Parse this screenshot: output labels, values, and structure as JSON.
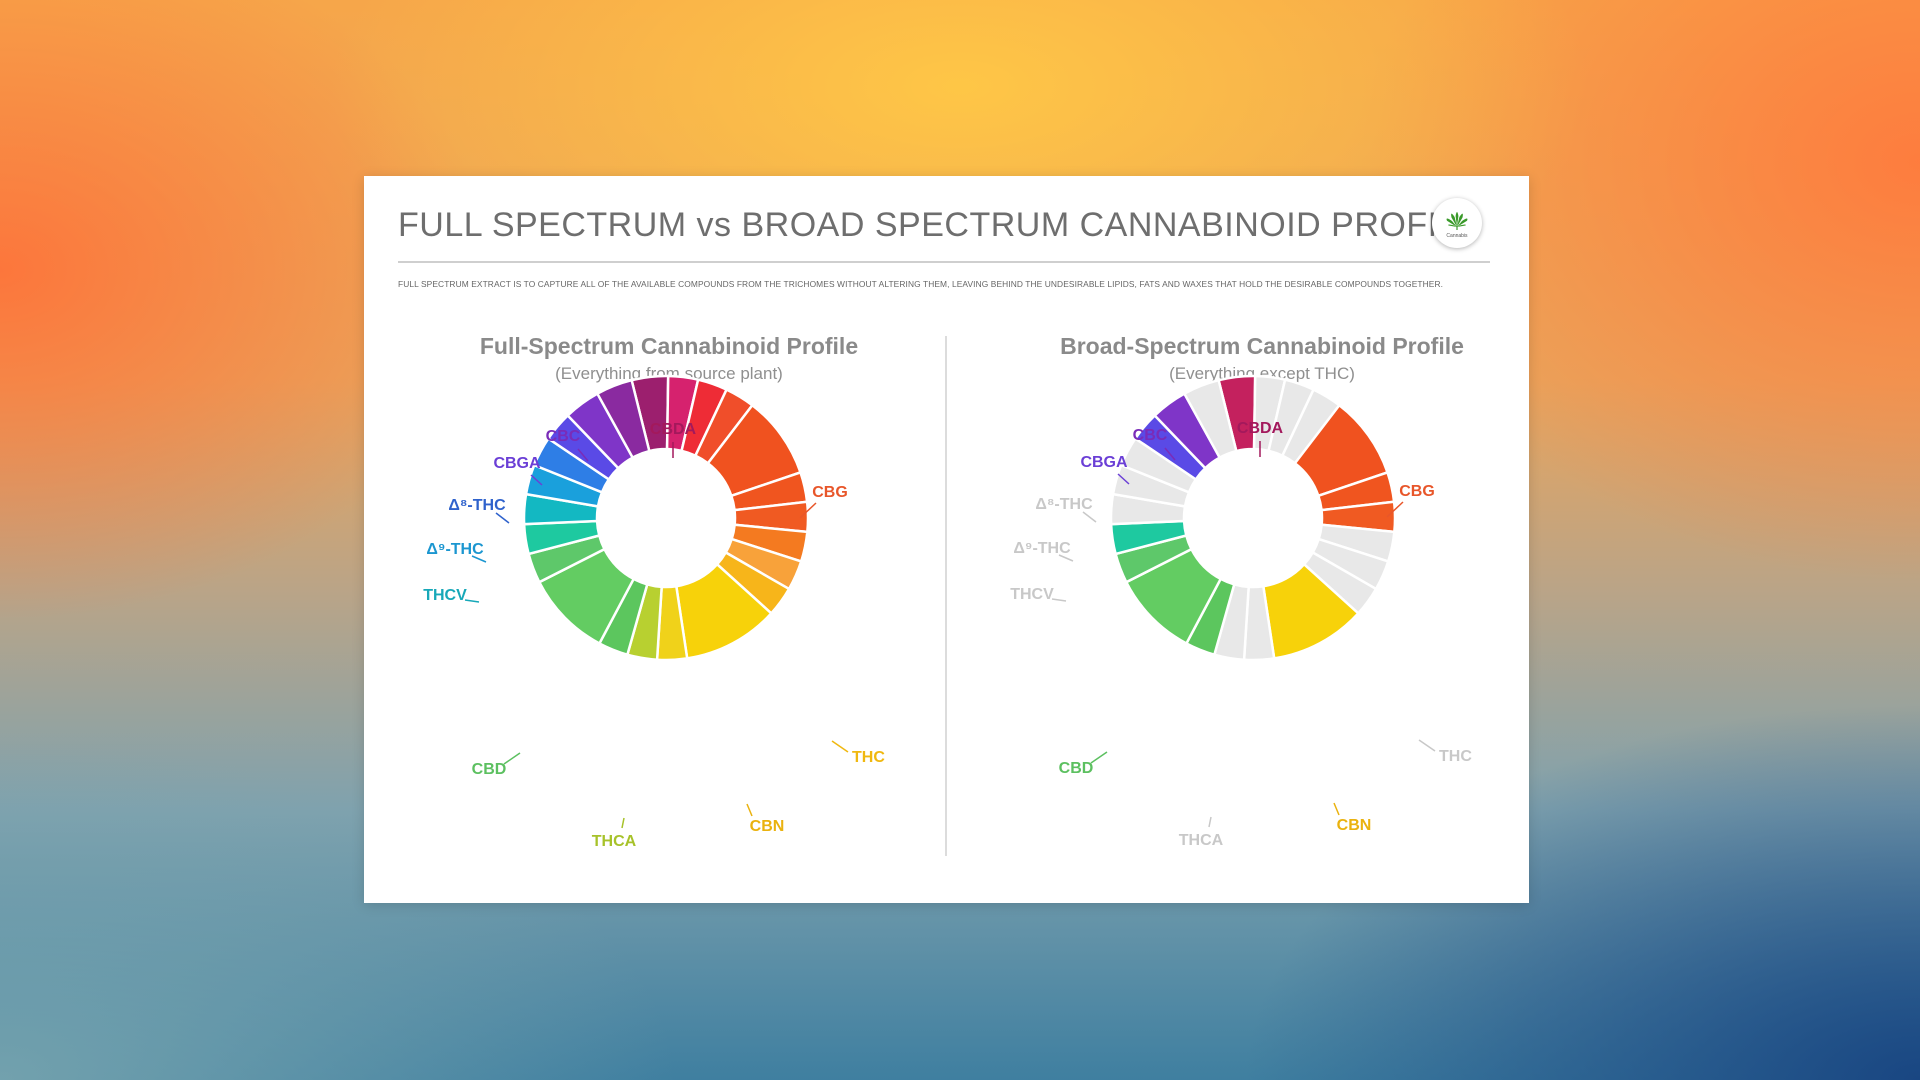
{
  "card": {
    "title": "FULL SPECTRUM vs BROAD SPECTRUM CANNABINOID PROFILE",
    "intro": "FULL SPECTRUM EXTRACT IS TO CAPTURE ALL OF THE AVAILABLE COMPOUNDS FROM THE TRICHOMES WITHOUT ALTERING THEM, LEAVING BEHIND THE UNDESIRABLE LIPIDS, FATS AND WAXES THAT HOLD THE DESIRABLE COMPOUNDS TOGETHER.",
    "logo_text": "Cannabis",
    "logo_icon": "cannabis-leaf-icon"
  },
  "chart_data": [
    {
      "type": "donut",
      "title": "Full-Spectrum Cannabinoid Profile",
      "subtitle": "(Everything from source plant)",
      "start_angle_deg": -14,
      "segments": [
        {
          "value": 5.5,
          "color": "#9c1f6e"
        },
        {
          "value": 4.5,
          "color": "#d6226e"
        },
        {
          "value": 4.5,
          "color": "#ee2c36"
        },
        {
          "value": 4.5,
          "color": "#f04e2a"
        },
        {
          "value": 12.5,
          "color": "#f0521f"
        },
        {
          "value": 4.5,
          "color": "#f0551f"
        },
        {
          "value": 4.5,
          "color": "#f05a22"
        },
        {
          "value": 4.5,
          "color": "#f47a20"
        },
        {
          "value": 4.5,
          "color": "#f8a23a"
        },
        {
          "value": 4.5,
          "color": "#f7b51a"
        },
        {
          "value": 14.5,
          "color": "#f7d20a"
        },
        {
          "value": 4.5,
          "color": "#f0d21a"
        },
        {
          "value": 4.5,
          "color": "#b8d030"
        },
        {
          "value": 4.5,
          "color": "#5cc65e"
        },
        {
          "value": 13,
          "color": "#63cc62"
        },
        {
          "value": 4.5,
          "color": "#5ec86a"
        },
        {
          "value": 4.5,
          "color": "#1ec9a0"
        },
        {
          "value": 4.5,
          "color": "#13b8c2"
        },
        {
          "value": 4.5,
          "color": "#1aa0dc"
        },
        {
          "value": 4.5,
          "color": "#2e7ee6"
        },
        {
          "value": 4.5,
          "color": "#5a4ae6"
        },
        {
          "value": 5.5,
          "color": "#7f35c8"
        },
        {
          "value": 5.5,
          "color": "#8a2aa0"
        }
      ],
      "labels": [
        {
          "text": "CBDA",
          "color": "#a3195c"
        },
        {
          "text": "CBG",
          "color": "#e8562a"
        },
        {
          "text": "THC",
          "color": "#f0b810"
        },
        {
          "text": "CBN",
          "color": "#eab20f"
        },
        {
          "text": "THCA",
          "color": "#a7c22a"
        },
        {
          "text": "CBD",
          "color": "#5cc060"
        },
        {
          "text": "THCV",
          "color": "#17a8b8"
        },
        {
          "text": "Δ⁹-THC",
          "color": "#1b96d0"
        },
        {
          "text": "Δ⁸-THC",
          "color": "#2f62cc"
        },
        {
          "text": "CBGA",
          "color": "#6b3fd6"
        },
        {
          "text": "CBC",
          "color": "#7a2cb8"
        }
      ]
    },
    {
      "type": "donut",
      "title": "Broad-Spectrum Cannabinoid Profile",
      "subtitle": "(Everything except THC)",
      "start_angle_deg": -14,
      "segments": [
        {
          "value": 5.5,
          "color": "#c4215e"
        },
        {
          "value": 4.5,
          "color": "#e8e8e8"
        },
        {
          "value": 4.5,
          "color": "#e8e8e8"
        },
        {
          "value": 4.5,
          "color": "#e8e8e8"
        },
        {
          "value": 12.5,
          "color": "#f0521f"
        },
        {
          "value": 4.5,
          "color": "#f0551f"
        },
        {
          "value": 4.5,
          "color": "#f05a22"
        },
        {
          "value": 4.5,
          "color": "#e8e8e8"
        },
        {
          "value": 4.5,
          "color": "#e8e8e8"
        },
        {
          "value": 4.5,
          "color": "#e8e8e8"
        },
        {
          "value": 14.5,
          "color": "#f7d20a"
        },
        {
          "value": 4.5,
          "color": "#e8e8e8"
        },
        {
          "value": 4.5,
          "color": "#e8e8e8"
        },
        {
          "value": 4.5,
          "color": "#5cc65e"
        },
        {
          "value": 13,
          "color": "#63cc62"
        },
        {
          "value": 4.5,
          "color": "#5ec86a"
        },
        {
          "value": 4.5,
          "color": "#1ec9a0"
        },
        {
          "value": 4.5,
          "color": "#e8e8e8"
        },
        {
          "value": 4.5,
          "color": "#e8e8e8"
        },
        {
          "value": 4.5,
          "color": "#e8e8e8"
        },
        {
          "value": 4.5,
          "color": "#5a4ae6"
        },
        {
          "value": 5.5,
          "color": "#7f35c8"
        },
        {
          "value": 5.5,
          "color": "#e8e8e8"
        }
      ],
      "labels": [
        {
          "text": "CBDA",
          "color": "#a3195c"
        },
        {
          "text": "CBG",
          "color": "#e8562a"
        },
        {
          "text": "THC",
          "color": "#c8c8c8"
        },
        {
          "text": "CBN",
          "color": "#eab20f"
        },
        {
          "text": "THCA",
          "color": "#c8c8c8"
        },
        {
          "text": "CBD",
          "color": "#5cc060"
        },
        {
          "text": "THCV",
          "color": "#c8c8c8"
        },
        {
          "text": "Δ⁹-THC",
          "color": "#c8c8c8"
        },
        {
          "text": "Δ⁸-THC",
          "color": "#c8c8c8"
        },
        {
          "text": "CBGA",
          "color": "#6b3fd6"
        },
        {
          "text": "CBC",
          "color": "#7a2cb8"
        }
      ]
    }
  ]
}
